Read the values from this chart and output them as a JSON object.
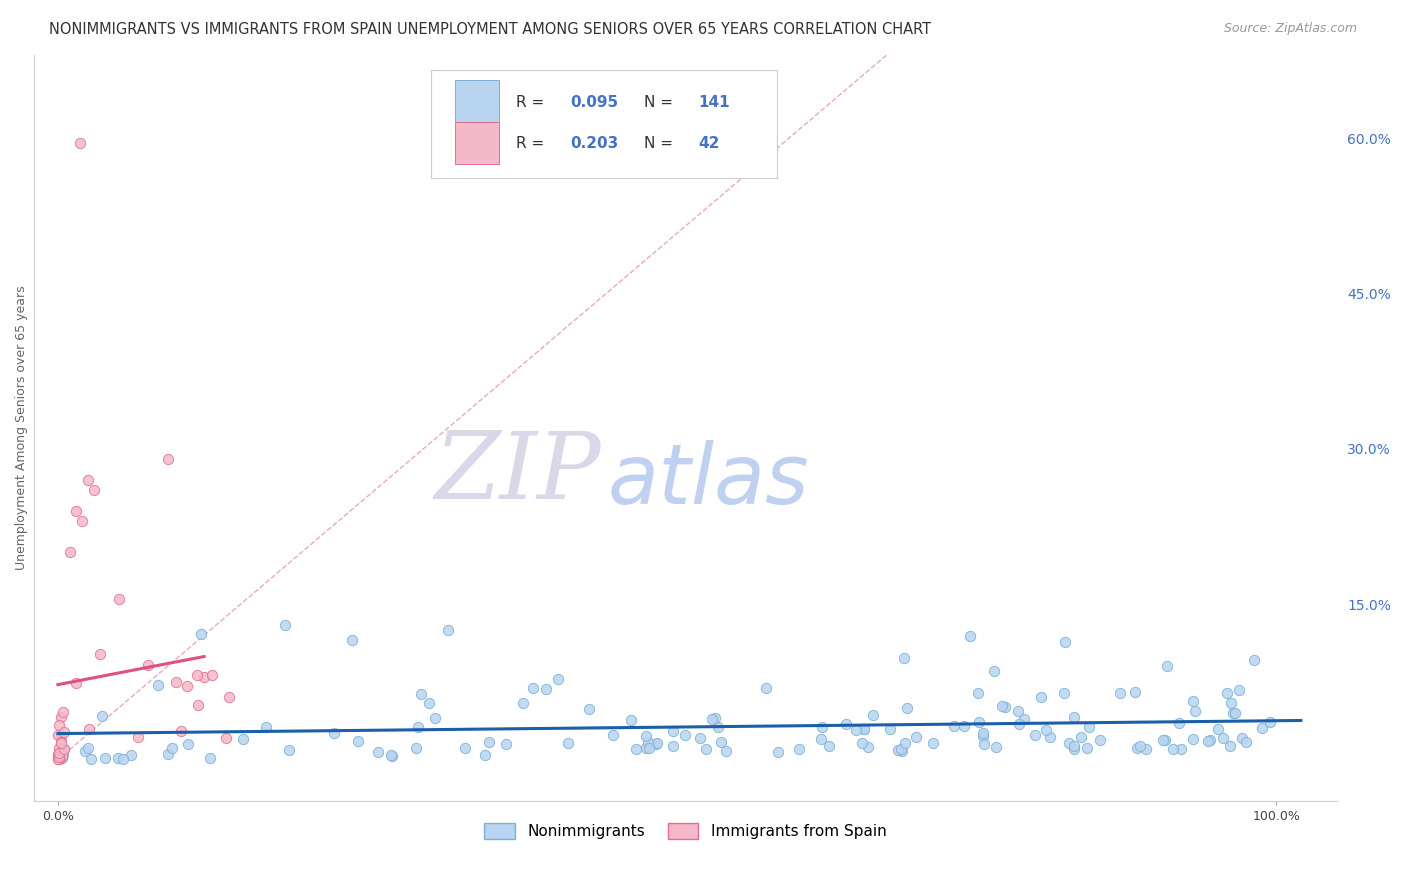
{
  "title": "NONIMMIGRANTS VS IMMIGRANTS FROM SPAIN UNEMPLOYMENT AMONG SENIORS OVER 65 YEARS CORRELATION CHART",
  "source": "Source: ZipAtlas.com",
  "ylabel": "Unemployment Among Seniors over 65 years",
  "right_ytick_labels": [
    "15.0%",
    "30.0%",
    "45.0%",
    "60.0%"
  ],
  "right_ytick_values": [
    0.15,
    0.3,
    0.45,
    0.6
  ],
  "xtick_labels": [
    "0.0%",
    "100.0%"
  ],
  "xtick_values": [
    0.0,
    1.0
  ],
  "xlim": [
    -0.02,
    1.05
  ],
  "ylim": [
    -0.04,
    0.68
  ],
  "series1_color": "#b8d4f0",
  "series1_edgecolor": "#7bafd4",
  "series2_color": "#f4b8c8",
  "series2_edgecolor": "#e07090",
  "trendline1_color": "#1a5fa8",
  "trendline2_color": "#e05080",
  "diagonal_color": "#e8a0b0",
  "watermark_zip_color": "#d8d8e8",
  "watermark_atlas_color": "#c0d0f0",
  "background_color": "#ffffff",
  "grid_color": "#dddddd",
  "title_fontsize": 10.5,
  "source_fontsize": 9,
  "ylabel_fontsize": 9,
  "tick_label_color_right": "#4472c4",
  "tick_label_color_bottom": "#444444",
  "series1_R": 0.095,
  "series1_N": 141,
  "series2_R": 0.203,
  "series2_N": 42,
  "legend_R1": "0.095",
  "legend_N1": "141",
  "legend_R2": "0.203",
  "legend_N2": "42"
}
